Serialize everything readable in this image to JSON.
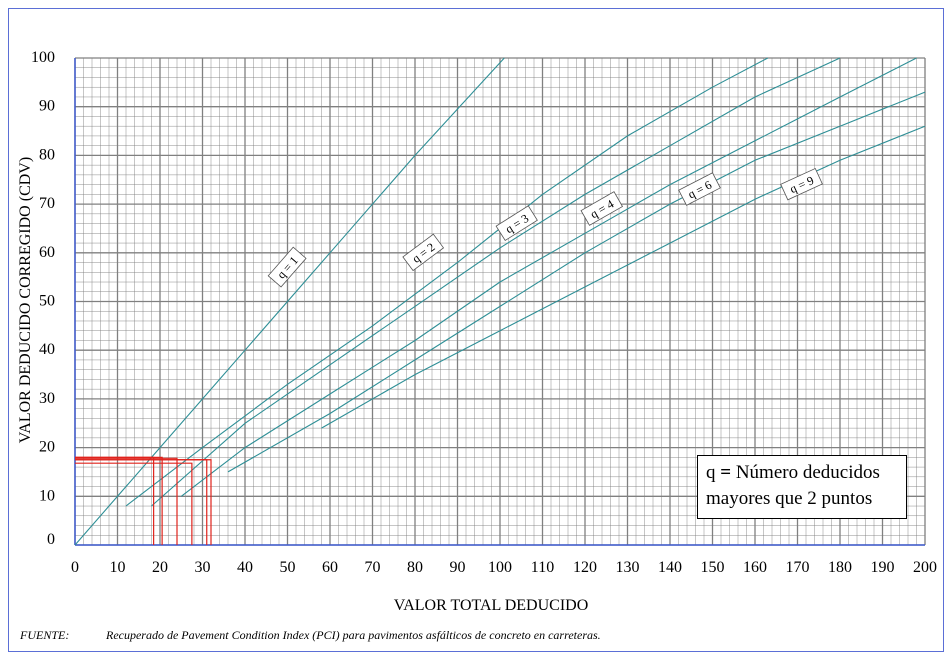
{
  "chart_data": {
    "type": "line",
    "xlabel": "VALOR TOTAL DEDUCIDO",
    "ylabel": "VALOR DEDUCIDO CORREGIDO (CDV)",
    "xlim": [
      0,
      200
    ],
    "ylim": [
      0,
      100
    ],
    "x_ticks": [
      "0",
      "10",
      "20",
      "30",
      "40",
      "50",
      "60",
      "70",
      "80",
      "90",
      "100",
      "110",
      "120",
      "130",
      "140",
      "150",
      "160",
      "170",
      "180",
      "190",
      "200"
    ],
    "y_ticks": [
      "0",
      "10",
      "20",
      "30",
      "40",
      "50",
      "60",
      "70",
      "80",
      "90",
      "100"
    ],
    "grid": true,
    "series": [
      {
        "name": "q = 1",
        "x": [
          0,
          20,
          40,
          60,
          80,
          101
        ],
        "y": [
          0,
          20,
          40,
          60,
          80,
          100
        ]
      },
      {
        "name": "q = 2",
        "x": [
          12,
          30,
          50,
          70,
          90,
          110,
          130,
          150,
          163
        ],
        "y": [
          8,
          20,
          33,
          45,
          58,
          72,
          84,
          94,
          100
        ]
      },
      {
        "name": "q = 3",
        "x": [
          18,
          40,
          60,
          80,
          100,
          120,
          140,
          160,
          180
        ],
        "y": [
          8,
          25,
          37,
          49,
          61,
          72,
          82,
          92,
          100
        ]
      },
      {
        "name": "q = 4",
        "x": [
          25,
          40,
          60,
          80,
          100,
          120,
          140,
          160,
          180,
          198
        ],
        "y": [
          10,
          20,
          31,
          42,
          54,
          64,
          74,
          83,
          92,
          100
        ]
      },
      {
        "name": "q = 6",
        "x": [
          36,
          60,
          80,
          100,
          120,
          140,
          160,
          180,
          200
        ],
        "y": [
          15,
          27,
          38,
          49,
          60,
          70,
          79,
          86,
          93
        ]
      },
      {
        "name": "q = 9",
        "x": [
          58,
          80,
          100,
          120,
          140,
          160,
          180,
          200
        ],
        "y": [
          24,
          35,
          44,
          53,
          62,
          71,
          79,
          86
        ]
      }
    ],
    "annotations": [
      {
        "x": 18.5,
        "y": 18
      },
      {
        "x": 20.5,
        "y": 18
      },
      {
        "x": 24,
        "y": 17.8
      },
      {
        "x": 27.5,
        "y": 16.8
      },
      {
        "x": 31,
        "y": 17.5
      },
      {
        "x": 32,
        "y": 17.5
      }
    ],
    "colors": {
      "curve": "#2e8f96",
      "highlight": "#e0231c",
      "grid": "#808080"
    }
  },
  "legend_note": {
    "line1_prefix": "q",
    "line1_equals": " = ",
    "line1_rest": "Número deducidos",
    "line2": "mayores que 2 puntos"
  },
  "source": {
    "label": "FUENTE:",
    "text": "Recuperado de Pavement Condition Index (PCI) para pavimentos asfálticos de concreto en carreteras."
  }
}
